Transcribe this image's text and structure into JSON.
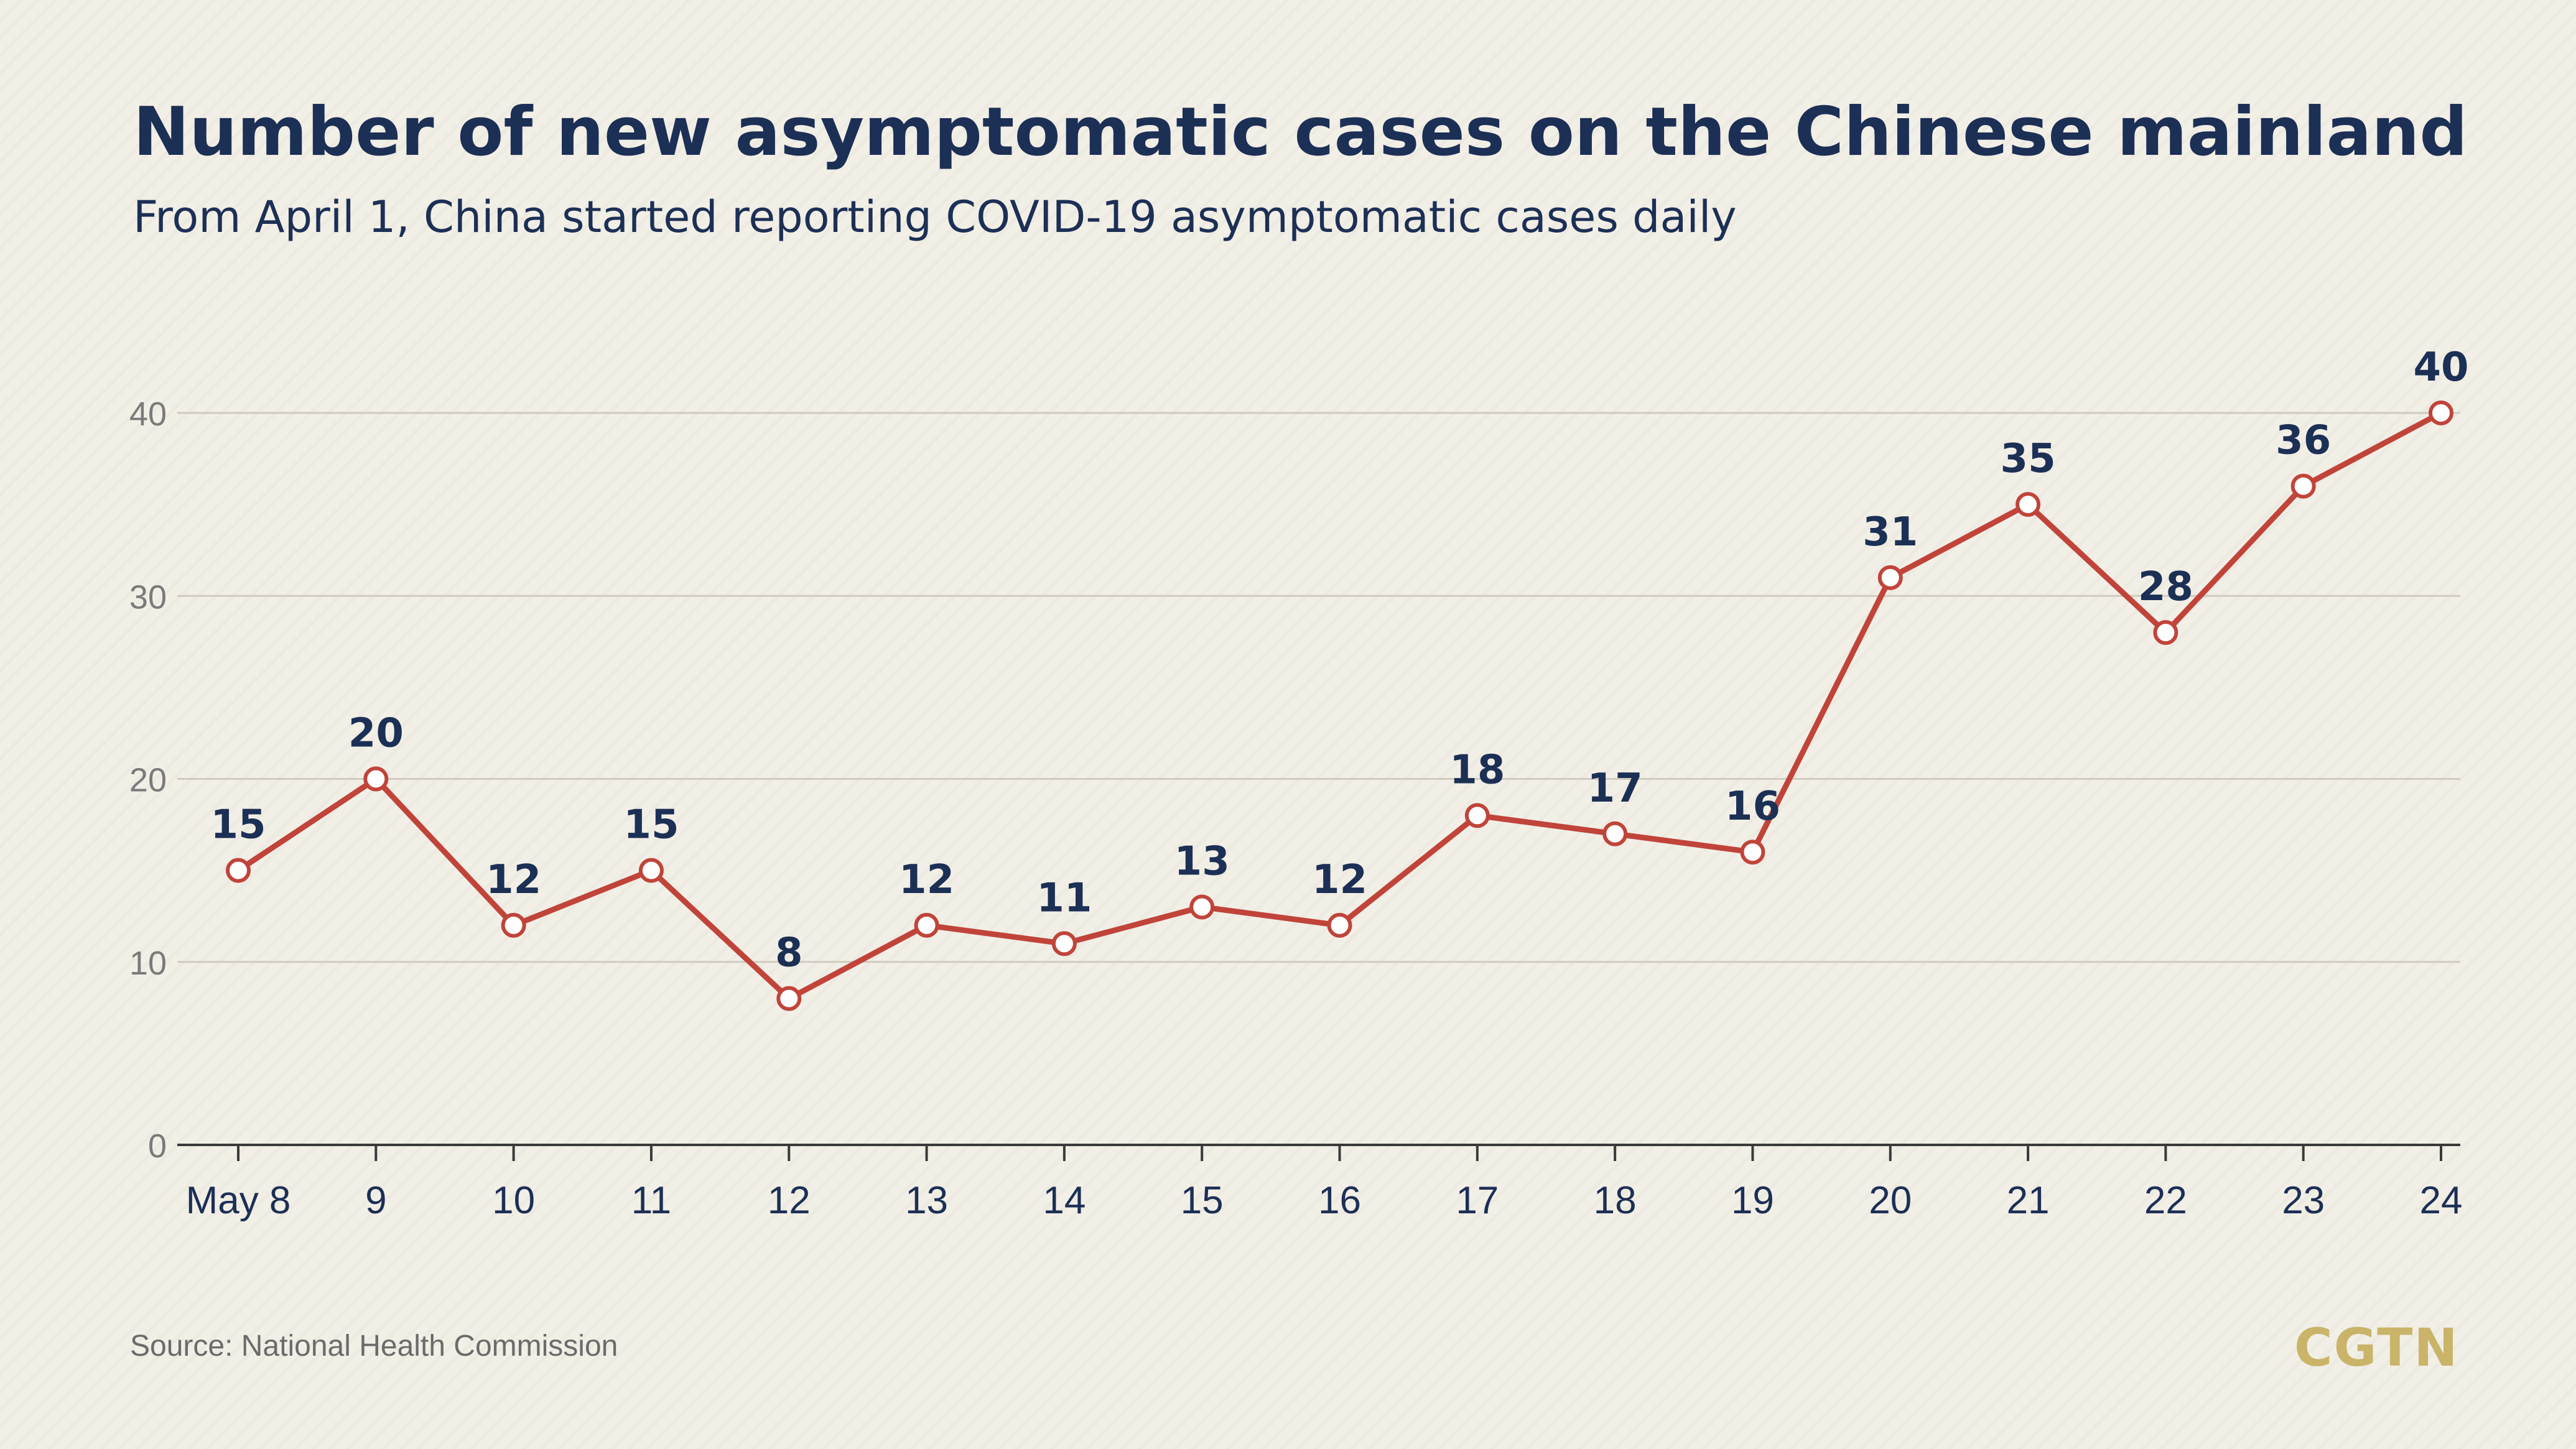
{
  "chart_data": {
    "type": "line",
    "title": "Number of new asymptomatic cases on the Chinese mainland",
    "subtitle": "From April 1, China started reporting COVID-19 asymptomatic cases daily",
    "categories": [
      "May 8",
      "9",
      "10",
      "11",
      "12",
      "13",
      "14",
      "15",
      "16",
      "17",
      "18",
      "19",
      "20",
      "21",
      "22",
      "23",
      "24"
    ],
    "values": [
      15,
      20,
      12,
      15,
      8,
      12,
      11,
      13,
      12,
      18,
      17,
      16,
      31,
      35,
      28,
      36,
      40
    ],
    "y_ticks": [
      "0",
      "10",
      "20",
      "30",
      "40"
    ],
    "ylim": [
      0,
      40
    ],
    "xlabel": "",
    "ylabel": "",
    "grid": true,
    "line_color": "#c0443a",
    "label_color": "#1c2f55"
  },
  "source": "Source: National Health Commission",
  "logo": "CGTN"
}
